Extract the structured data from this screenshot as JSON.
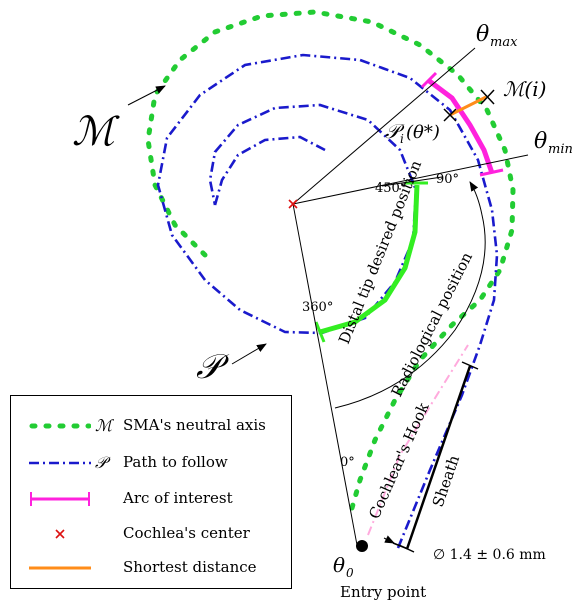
{
  "labels": {
    "theta_max": "θ",
    "theta_max_sub": "max",
    "theta_min": "θ",
    "theta_min_sub": "min",
    "M_big": "ℳ",
    "P_big": "𝒫",
    "M_i": "ℳ(i)",
    "P_i": "𝒫",
    "P_i_sub": "i",
    "P_i_arg": "(θ*)",
    "theta0": "θ",
    "theta0_sub": "0",
    "entry_point": "Entry point",
    "angle_90": "90°",
    "angle_450": "450°",
    "angle_360": "360°",
    "angle_0": "0°",
    "distal_tip": "Distal tip desired position",
    "radiological": "Radiological position",
    "cochlear_hook": "Cochlear's Hook",
    "sheath": "Sheath",
    "diameter": "∅ 1.4 ± 0.6 mm"
  },
  "legend": [
    {
      "symbol": "ℳ",
      "label": "SMA's neutral axis",
      "style": "dotted-green"
    },
    {
      "symbol": "𝒫",
      "label": "Path to follow",
      "style": "dashdot-blue"
    },
    {
      "symbol": "",
      "label": "Arc of interest",
      "style": "magenta-bar"
    },
    {
      "symbol": "",
      "label": "Cochlea's center",
      "style": "red-x"
    },
    {
      "symbol": "",
      "label": "Shortest distance",
      "style": "orange-line"
    }
  ],
  "colors": {
    "neutral_axis": "#22cc33",
    "path": "#1a1acc",
    "arc_of_interest": "#ff22dd",
    "center": "#dd1111",
    "shortest": "#ff8c1a",
    "distal": "#33ee22",
    "hook": "#ffaadd"
  }
}
